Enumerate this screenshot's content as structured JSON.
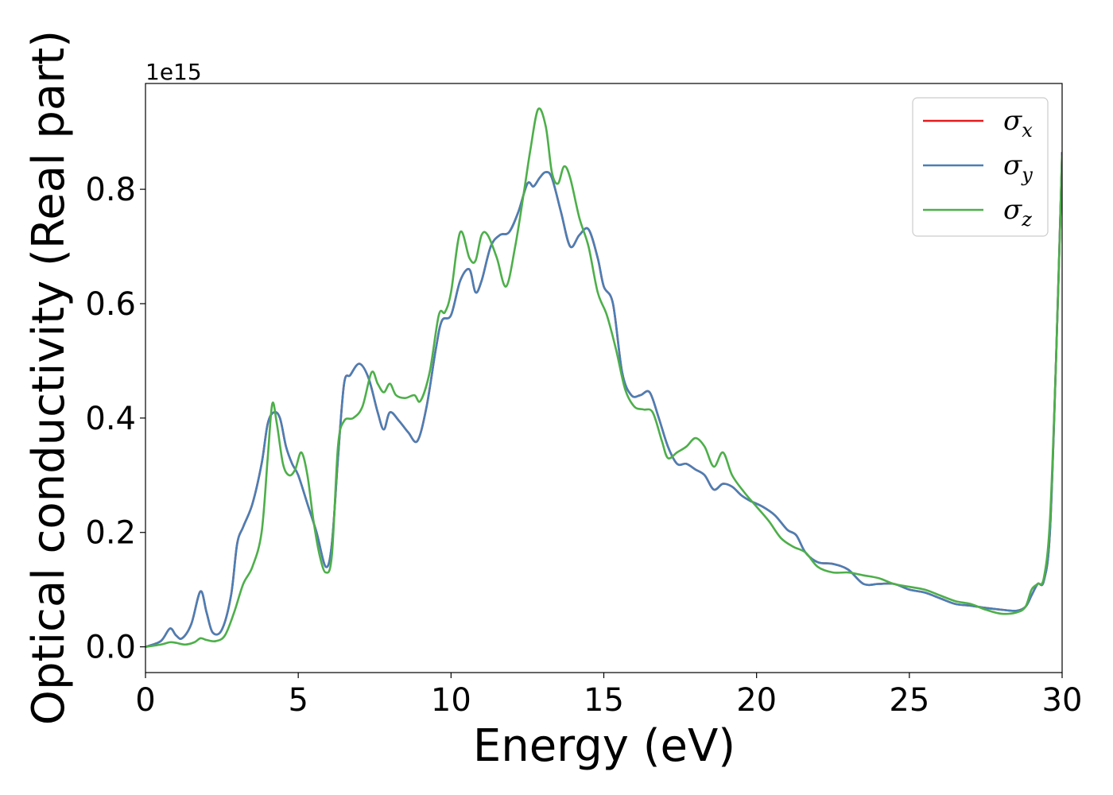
{
  "chart_data": {
    "type": "line",
    "xlabel": "Energy (eV)",
    "ylabel": "Optical conductivity (Real part)",
    "y_offset_label": "1e15",
    "xlim": [
      0,
      30
    ],
    "ylim": [
      -0.045,
      0.985
    ],
    "x_ticks": [
      0,
      5,
      10,
      15,
      20,
      25,
      30
    ],
    "x_tick_labels": [
      "0",
      "5",
      "10",
      "15",
      "20",
      "25",
      "30"
    ],
    "y_ticks": [
      0.0,
      0.2,
      0.4,
      0.6,
      0.8
    ],
    "y_tick_labels": [
      "0.0",
      "0.2",
      "0.4",
      "0.6",
      "0.8"
    ],
    "grid": false,
    "legend_position": "top-right",
    "series": [
      {
        "name": "σx",
        "symbol": "σ",
        "subscript": "x",
        "color": "#e41a1c",
        "x": [
          0,
          0.5,
          0.8,
          1.0,
          1.2,
          1.5,
          1.8,
          2.0,
          2.2,
          2.5,
          2.8,
          3.0,
          3.2,
          3.5,
          3.8,
          4.0,
          4.2,
          4.4,
          4.6,
          4.8,
          5.0,
          5.3,
          5.6,
          5.9,
          6.1,
          6.3,
          6.5,
          6.7,
          7.0,
          7.3,
          7.6,
          7.8,
          8.0,
          8.3,
          8.6,
          8.9,
          9.2,
          9.5,
          9.7,
          10.0,
          10.3,
          10.6,
          10.8,
          11.0,
          11.3,
          11.6,
          11.9,
          12.2,
          12.5,
          12.7,
          12.9,
          13.1,
          13.3,
          13.6,
          13.9,
          14.2,
          14.5,
          14.8,
          15.0,
          15.3,
          15.6,
          15.9,
          16.2,
          16.5,
          16.8,
          17.1,
          17.4,
          17.7,
          18.0,
          18.3,
          18.6,
          18.9,
          19.2,
          19.5,
          19.8,
          20.2,
          20.6,
          21.0,
          21.3,
          21.6,
          22.0,
          22.5,
          23.0,
          23.5,
          24.0,
          24.5,
          25.0,
          25.5,
          26.0,
          26.5,
          27.0,
          27.5,
          28.0,
          28.5,
          28.8,
          29.0,
          29.2,
          29.4,
          29.6,
          29.8,
          30.0
        ],
        "y": [
          0.0,
          0.01,
          0.032,
          0.02,
          0.015,
          0.04,
          0.097,
          0.06,
          0.025,
          0.03,
          0.09,
          0.18,
          0.21,
          0.25,
          0.32,
          0.39,
          0.41,
          0.4,
          0.35,
          0.32,
          0.3,
          0.25,
          0.2,
          0.14,
          0.18,
          0.33,
          0.46,
          0.475,
          0.495,
          0.47,
          0.41,
          0.38,
          0.41,
          0.395,
          0.375,
          0.36,
          0.42,
          0.52,
          0.57,
          0.58,
          0.64,
          0.66,
          0.62,
          0.64,
          0.7,
          0.72,
          0.725,
          0.76,
          0.81,
          0.805,
          0.82,
          0.83,
          0.82,
          0.76,
          0.7,
          0.72,
          0.73,
          0.68,
          0.63,
          0.6,
          0.48,
          0.44,
          0.44,
          0.445,
          0.4,
          0.35,
          0.32,
          0.32,
          0.31,
          0.3,
          0.275,
          0.285,
          0.28,
          0.265,
          0.255,
          0.245,
          0.23,
          0.205,
          0.195,
          0.165,
          0.148,
          0.145,
          0.135,
          0.11,
          0.11,
          0.11,
          0.1,
          0.095,
          0.085,
          0.075,
          0.072,
          0.068,
          0.065,
          0.063,
          0.07,
          0.09,
          0.11,
          0.115,
          0.2,
          0.5,
          0.865
        ]
      },
      {
        "name": "σy",
        "symbol": "σ",
        "subscript": "y",
        "color": "#4a7fb5",
        "x": [
          0,
          0.5,
          0.8,
          1.0,
          1.2,
          1.5,
          1.8,
          2.0,
          2.2,
          2.5,
          2.8,
          3.0,
          3.2,
          3.5,
          3.8,
          4.0,
          4.2,
          4.4,
          4.6,
          4.8,
          5.0,
          5.3,
          5.6,
          5.9,
          6.1,
          6.3,
          6.5,
          6.7,
          7.0,
          7.3,
          7.6,
          7.8,
          8.0,
          8.3,
          8.6,
          8.9,
          9.2,
          9.5,
          9.7,
          10.0,
          10.3,
          10.6,
          10.8,
          11.0,
          11.3,
          11.6,
          11.9,
          12.2,
          12.5,
          12.7,
          12.9,
          13.1,
          13.3,
          13.6,
          13.9,
          14.2,
          14.5,
          14.8,
          15.0,
          15.3,
          15.6,
          15.9,
          16.2,
          16.5,
          16.8,
          17.1,
          17.4,
          17.7,
          18.0,
          18.3,
          18.6,
          18.9,
          19.2,
          19.5,
          19.8,
          20.2,
          20.6,
          21.0,
          21.3,
          21.6,
          22.0,
          22.5,
          23.0,
          23.5,
          24.0,
          24.5,
          25.0,
          25.5,
          26.0,
          26.5,
          27.0,
          27.5,
          28.0,
          28.5,
          28.8,
          29.0,
          29.2,
          29.4,
          29.6,
          29.8,
          30.0
        ],
        "y": [
          0.0,
          0.01,
          0.032,
          0.02,
          0.015,
          0.04,
          0.097,
          0.06,
          0.025,
          0.03,
          0.09,
          0.18,
          0.21,
          0.25,
          0.32,
          0.39,
          0.41,
          0.4,
          0.35,
          0.32,
          0.3,
          0.25,
          0.2,
          0.14,
          0.18,
          0.33,
          0.46,
          0.475,
          0.495,
          0.47,
          0.41,
          0.38,
          0.41,
          0.395,
          0.375,
          0.36,
          0.42,
          0.52,
          0.57,
          0.58,
          0.64,
          0.66,
          0.62,
          0.64,
          0.7,
          0.72,
          0.725,
          0.76,
          0.81,
          0.805,
          0.82,
          0.83,
          0.82,
          0.76,
          0.7,
          0.72,
          0.73,
          0.68,
          0.63,
          0.6,
          0.48,
          0.44,
          0.44,
          0.445,
          0.4,
          0.35,
          0.32,
          0.32,
          0.31,
          0.3,
          0.275,
          0.285,
          0.28,
          0.265,
          0.255,
          0.245,
          0.23,
          0.205,
          0.195,
          0.165,
          0.148,
          0.145,
          0.135,
          0.11,
          0.11,
          0.11,
          0.1,
          0.095,
          0.085,
          0.075,
          0.072,
          0.068,
          0.065,
          0.063,
          0.07,
          0.09,
          0.11,
          0.115,
          0.2,
          0.5,
          0.865
        ]
      },
      {
        "name": "σz",
        "symbol": "σ",
        "subscript": "z",
        "color": "#4daf4a",
        "x": [
          0,
          0.5,
          0.8,
          1.0,
          1.3,
          1.6,
          1.8,
          2.0,
          2.3,
          2.6,
          2.9,
          3.2,
          3.5,
          3.8,
          4.0,
          4.15,
          4.3,
          4.5,
          4.7,
          4.9,
          5.1,
          5.3,
          5.5,
          5.7,
          5.9,
          6.1,
          6.3,
          6.5,
          6.8,
          7.1,
          7.4,
          7.6,
          7.8,
          8.0,
          8.2,
          8.5,
          8.8,
          9.0,
          9.3,
          9.6,
          9.8,
          10.0,
          10.3,
          10.6,
          10.8,
          11.0,
          11.2,
          11.5,
          11.8,
          12.1,
          12.4,
          12.6,
          12.85,
          13.1,
          13.3,
          13.5,
          13.7,
          13.9,
          14.2,
          14.5,
          14.8,
          15.1,
          15.4,
          15.7,
          16.0,
          16.3,
          16.6,
          16.9,
          17.1,
          17.4,
          17.7,
          18.0,
          18.3,
          18.6,
          18.9,
          19.2,
          19.6,
          20.0,
          20.4,
          20.8,
          21.2,
          21.6,
          22.0,
          22.5,
          23.0,
          23.5,
          24.0,
          24.5,
          25.0,
          25.5,
          26.0,
          26.5,
          27.0,
          27.5,
          28.0,
          28.5,
          28.8,
          29.0,
          29.2,
          29.4,
          29.6,
          29.8,
          30.0
        ],
        "y": [
          0.0,
          0.004,
          0.008,
          0.007,
          0.004,
          0.008,
          0.015,
          0.012,
          0.01,
          0.02,
          0.06,
          0.11,
          0.14,
          0.2,
          0.33,
          0.425,
          0.39,
          0.32,
          0.3,
          0.31,
          0.34,
          0.3,
          0.22,
          0.16,
          0.13,
          0.16,
          0.35,
          0.395,
          0.4,
          0.42,
          0.48,
          0.46,
          0.445,
          0.46,
          0.44,
          0.435,
          0.44,
          0.43,
          0.48,
          0.58,
          0.585,
          0.62,
          0.725,
          0.68,
          0.675,
          0.72,
          0.72,
          0.68,
          0.63,
          0.7,
          0.8,
          0.87,
          0.94,
          0.91,
          0.83,
          0.81,
          0.84,
          0.82,
          0.75,
          0.7,
          0.62,
          0.58,
          0.52,
          0.45,
          0.42,
          0.415,
          0.41,
          0.36,
          0.33,
          0.34,
          0.35,
          0.365,
          0.35,
          0.315,
          0.34,
          0.3,
          0.27,
          0.245,
          0.22,
          0.19,
          0.175,
          0.165,
          0.14,
          0.13,
          0.13,
          0.125,
          0.12,
          0.11,
          0.105,
          0.1,
          0.09,
          0.08,
          0.075,
          0.065,
          0.058,
          0.06,
          0.07,
          0.1,
          0.11,
          0.12,
          0.22,
          0.5,
          0.86
        ]
      }
    ]
  }
}
